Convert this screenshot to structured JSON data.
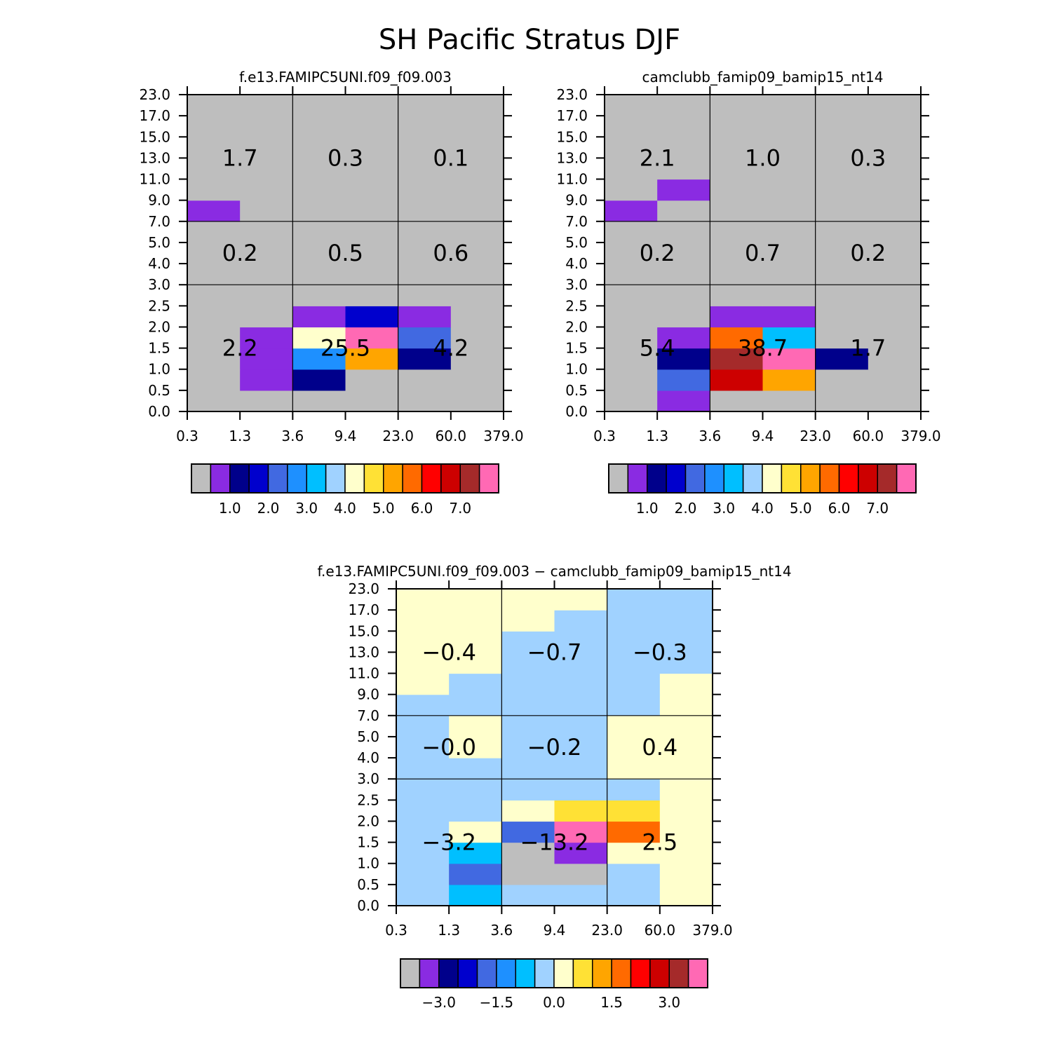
{
  "title": "SH Pacific Stratus DJF",
  "x_ticks": [
    "0.3",
    "1.3",
    "3.6",
    "9.4",
    "23.0",
    "60.0",
    "379.0"
  ],
  "y_ticks": [
    "0.0",
    "0.5",
    "1.0",
    "1.5",
    "2.0",
    "2.5",
    "3.0",
    "4.0",
    "5.0",
    "7.0",
    "9.0",
    "11.0",
    "13.0",
    "15.0",
    "17.0",
    "23.0"
  ],
  "palette": [
    "#bebebe",
    "#8a2be2",
    "#00008b",
    "#0000cd",
    "#4169e1",
    "#1e90ff",
    "#00bfff",
    "#a0d2ff",
    "#ffffcc",
    "#ffe135",
    "#ffa500",
    "#ff6a00",
    "#ff0000",
    "#cd0000",
    "#a52a2a",
    "#ff69b4"
  ],
  "chart_data": [
    {
      "type": "heatmap",
      "title": "f.e13.FAMIPC5UNI.f09_f09.003",
      "x_tick_labels": [
        "0.3",
        "1.3",
        "3.6",
        "9.4",
        "23.0",
        "60.0",
        "379.0"
      ],
      "y_tick_labels": [
        "0.0",
        "0.5",
        "1.0",
        "1.5",
        "2.0",
        "2.5",
        "3.0",
        "4.0",
        "5.0",
        "7.0",
        "9.0",
        "11.0",
        "13.0",
        "15.0",
        "17.0",
        "23.0"
      ],
      "colorbar_labels": [
        "1.0",
        "2.0",
        "3.0",
        "4.0",
        "5.0",
        "6.0",
        "7.0"
      ],
      "cells": [
        [
          0,
          0,
          0,
          0,
          0,
          0
        ],
        [
          0,
          1,
          2,
          0,
          0,
          0
        ],
        [
          0,
          1,
          5,
          10,
          2,
          0
        ],
        [
          0,
          1,
          8,
          15,
          4,
          0
        ],
        [
          0,
          0,
          1,
          3,
          1,
          0
        ],
        [
          0,
          0,
          0,
          0,
          0,
          0
        ],
        [
          0,
          0,
          0,
          0,
          0,
          0
        ],
        [
          0,
          0,
          0,
          0,
          0,
          0
        ],
        [
          0,
          0,
          0,
          0,
          0,
          0
        ],
        [
          1,
          0,
          0,
          0,
          0,
          0
        ],
        [
          0,
          0,
          0,
          0,
          0,
          0
        ],
        [
          0,
          0,
          0,
          0,
          0,
          0
        ],
        [
          0,
          0,
          0,
          0,
          0,
          0
        ],
        [
          0,
          0,
          0,
          0,
          0,
          0
        ],
        [
          0,
          0,
          0,
          0,
          0,
          0
        ]
      ],
      "sums": [
        "1.7",
        "0.3",
        "0.1",
        "0.2",
        "0.5",
        "0.6",
        "2.2",
        "25.5",
        "4.2"
      ]
    },
    {
      "type": "heatmap",
      "title": "camclubb_famip09_bamip15_nt14",
      "x_tick_labels": [
        "0.3",
        "1.3",
        "3.6",
        "9.4",
        "23.0",
        "60.0",
        "379.0"
      ],
      "y_tick_labels": [
        "0.0",
        "0.5",
        "1.0",
        "1.5",
        "2.0",
        "2.5",
        "3.0",
        "4.0",
        "5.0",
        "7.0",
        "9.0",
        "11.0",
        "13.0",
        "15.0",
        "17.0",
        "23.0"
      ],
      "colorbar_labels": [
        "1.0",
        "2.0",
        "3.0",
        "4.0",
        "5.0",
        "6.0",
        "7.0"
      ],
      "cells": [
        [
          0,
          1,
          0,
          0,
          0,
          0
        ],
        [
          0,
          4,
          13,
          10,
          0,
          0
        ],
        [
          0,
          2,
          14,
          15,
          2,
          0
        ],
        [
          0,
          1,
          11,
          6,
          0,
          0
        ],
        [
          0,
          0,
          1,
          1,
          0,
          0
        ],
        [
          0,
          0,
          0,
          0,
          0,
          0
        ],
        [
          0,
          0,
          0,
          0,
          0,
          0
        ],
        [
          0,
          0,
          0,
          0,
          0,
          0
        ],
        [
          0,
          0,
          0,
          0,
          0,
          0
        ],
        [
          1,
          0,
          0,
          0,
          0,
          0
        ],
        [
          0,
          1,
          0,
          0,
          0,
          0
        ],
        [
          0,
          0,
          0,
          0,
          0,
          0
        ],
        [
          0,
          0,
          0,
          0,
          0,
          0
        ],
        [
          0,
          0,
          0,
          0,
          0,
          0
        ],
        [
          0,
          0,
          0,
          0,
          0,
          0
        ]
      ],
      "sums": [
        "2.1",
        "1.0",
        "0.3",
        "0.2",
        "0.7",
        "0.2",
        "5.4",
        "38.7",
        "1.7"
      ]
    },
    {
      "type": "heatmap",
      "title": "f.e13.FAMIPC5UNI.f09_f09.003 − camclubb_famip09_bamip15_nt14",
      "x_tick_labels": [
        "0.3",
        "1.3",
        "3.6",
        "9.4",
        "23.0",
        "60.0",
        "379.0"
      ],
      "y_tick_labels": [
        "0.0",
        "0.5",
        "1.0",
        "1.5",
        "2.0",
        "2.5",
        "3.0",
        "4.0",
        "5.0",
        "7.0",
        "9.0",
        "11.0",
        "13.0",
        "15.0",
        "17.0",
        "23.0"
      ],
      "colorbar_labels": [
        "−3.0",
        "−1.5",
        "0.0",
        "1.5",
        "3.0"
      ],
      "cells": [
        [
          7,
          6,
          7,
          7,
          7,
          8
        ],
        [
          7,
          4,
          0,
          0,
          7,
          8
        ],
        [
          7,
          6,
          0,
          1,
          8,
          8
        ],
        [
          7,
          8,
          4,
          15,
          11,
          8
        ],
        [
          7,
          7,
          8,
          9,
          9,
          8
        ],
        [
          7,
          7,
          7,
          7,
          7,
          8
        ],
        [
          7,
          7,
          7,
          7,
          8,
          8
        ],
        [
          7,
          8,
          7,
          7,
          8,
          8
        ],
        [
          7,
          8,
          7,
          7,
          8,
          8
        ],
        [
          7,
          7,
          7,
          7,
          7,
          8
        ],
        [
          8,
          7,
          7,
          7,
          7,
          8
        ],
        [
          8,
          8,
          7,
          7,
          7,
          7
        ],
        [
          8,
          8,
          7,
          7,
          7,
          7
        ],
        [
          8,
          8,
          8,
          7,
          7,
          7
        ],
        [
          8,
          8,
          8,
          8,
          7,
          7
        ]
      ],
      "sums": [
        "−0.4",
        "−0.7",
        "−0.3",
        "−0.0",
        "−0.2",
        "0.4",
        "−3.2",
        "−13.2",
        "2.5"
      ]
    }
  ]
}
